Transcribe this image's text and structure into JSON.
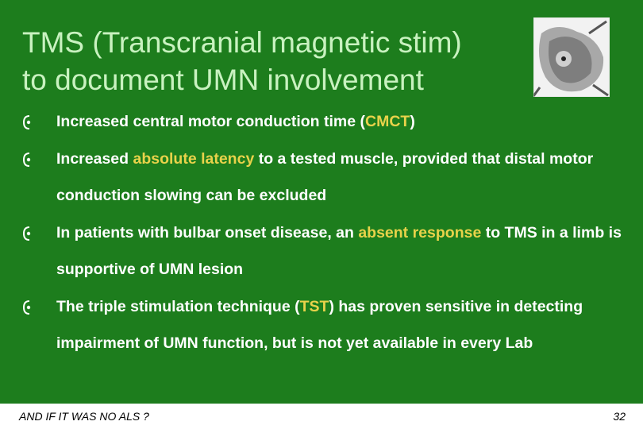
{
  "header": {
    "title_lines": [
      "TMS (Transcranial magnetic stim)",
      "to document UMN involvement"
    ]
  },
  "bullets": [
    {
      "before": "Increased central motor conduction time (",
      "highlight": "CMCT",
      "after": ")"
    },
    {
      "before": "Increased ",
      "highlight": "absolute latency",
      "after": " to a tested muscle, provided that distal motor conduction slowing can be excluded"
    },
    {
      "before": "In patients with bulbar onset disease, an ",
      "highlight": "absent response",
      "after": " to TMS in a limb is supportive of UMN lesion"
    },
    {
      "before": "The triple stimulation technique (",
      "highlight": "TST",
      "after": ") has proven sensitive in detecting impairment of UMN function, but is not yet available in every Lab"
    }
  ],
  "footer": {
    "left": "AND IF IT WAS NO ALS ?",
    "page": "32"
  }
}
